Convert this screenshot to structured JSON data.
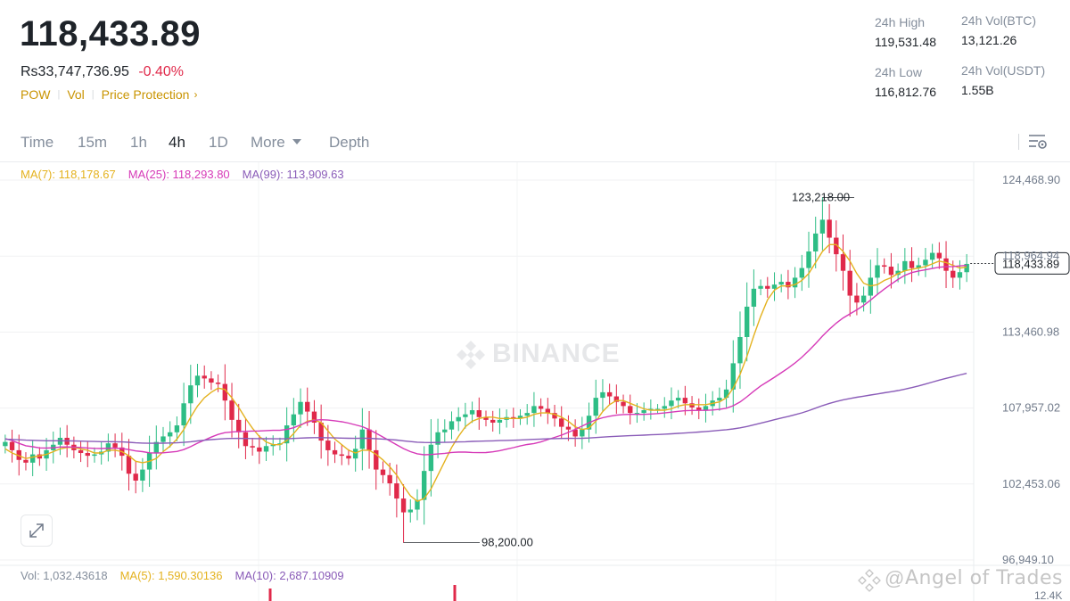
{
  "header": {
    "last_price": "118,433.89",
    "fiat_price": "Rs33,747,736.95",
    "change_pct": "-0.40%",
    "tags": [
      "POW",
      "Vol",
      "Price Protection"
    ],
    "stats": [
      {
        "label": "24h High",
        "value": "119,531.48"
      },
      {
        "label": "24h Vol(BTC)",
        "value": "13,121.26"
      },
      {
        "label": "24h Low",
        "value": "116,812.76"
      },
      {
        "label": "24h Vol(USDT)",
        "value": "1.55B"
      }
    ]
  },
  "toolbar": {
    "intervals": [
      "Time",
      "15m",
      "1h",
      "4h",
      "1D",
      "More",
      "Depth"
    ],
    "active": "4h"
  },
  "ma_legend": {
    "ma7": "MA(7): 118,178.67",
    "ma25": "MA(25): 118,293.80",
    "ma99": "MA(99): 113,909.63"
  },
  "vol_legend": {
    "vol": "Vol: 1,032.43618",
    "ma5": "MA(5): 1,590.30136",
    "ma10": "MA(10): 2,687.10909"
  },
  "colors": {
    "up": "#2ebd85",
    "down": "#e0294a",
    "ma7": "#e4b21f",
    "ma25": "#d63ab8",
    "ma99": "#8a5cb8",
    "accent": "#c99400"
  },
  "watermark": {
    "brand": "BINANCE",
    "author": "Angel of Trades",
    "author_at": "@"
  },
  "chart_data": {
    "type": "candlestick",
    "y_ticks": [
      "124,468.90",
      "118,964.94",
      "113,460.98",
      "107,957.02",
      "102,453.06",
      "96,949.10"
    ],
    "y_tick_values": [
      124468.9,
      118964.94,
      113460.98,
      107957.02,
      102453.06,
      96949.1
    ],
    "ylim": [
      96949.1,
      124468.9
    ],
    "volume_axis_label": "12.4K",
    "high_annotation": "123,218.00",
    "high_value": 123218.0,
    "low_annotation": "98,200.00",
    "low_value": 98200.0,
    "current_price_label": "118,433.89",
    "current_price": 118433.89,
    "close_series": [
      105500,
      104900,
      104200,
      104000,
      104600,
      104300,
      104900,
      105300,
      105800,
      105300,
      104900,
      104700,
      104500,
      104600,
      104800,
      105400,
      105100,
      104500,
      103200,
      102700,
      103500,
      104700,
      105500,
      105900,
      106200,
      106700,
      108300,
      109600,
      110300,
      110100,
      109800,
      109700,
      108500,
      107100,
      106200,
      105200,
      105100,
      104800,
      105200,
      105300,
      105400,
      106700,
      107500,
      108400,
      107700,
      106900,
      105600,
      104900,
      104600,
      104500,
      104300,
      105000,
      106400,
      104900,
      103500,
      103100,
      102500,
      101400,
      100400,
      100600,
      101300,
      103400,
      105300,
      106200,
      106400,
      107000,
      107300,
      107500,
      107800,
      107300,
      107100,
      106900,
      107100,
      107300,
      107200,
      107400,
      107600,
      108100,
      107900,
      107600,
      107200,
      106600,
      106400,
      105900,
      106400,
      107400,
      108700,
      109100,
      108800,
      108400,
      108100,
      107600,
      107600,
      107800,
      107900,
      107900,
      108100,
      108500,
      108700,
      108300,
      108000,
      107800,
      108100,
      108500,
      108700,
      109300,
      111200,
      113100,
      115300,
      116600,
      116800,
      116600,
      116900,
      117100,
      116700,
      117400,
      118100,
      119300,
      120600,
      121600,
      120300,
      119100,
      117900,
      116100,
      115600,
      116100,
      117400,
      118300,
      118200,
      117600,
      117900,
      118600,
      118100,
      118300,
      118700,
      119200,
      118800,
      117900,
      117400,
      117800,
      118400
    ],
    "ma7_series": [
      105000,
      104700,
      104500,
      104300,
      104400,
      104500,
      104600,
      104800,
      105000,
      105100,
      105100,
      105000,
      104900,
      104700,
      104700,
      104900,
      104900,
      104800,
      104500,
      104100,
      104000,
      104100,
      104300,
      104800,
      105200,
      105700,
      106400,
      107300,
      108100,
      108700,
      109100,
      109400,
      109300,
      108700,
      108000,
      107200,
      106500,
      105900,
      105500,
      105300,
      105300,
      105600,
      106100,
      106700,
      107000,
      107100,
      106900,
      106300,
      105700,
      105300,
      104900,
      104700,
      104900,
      104900,
      104600,
      104200,
      103700,
      103100,
      102300,
      101600,
      101200,
      101400,
      102100,
      103100,
      104100,
      105100,
      105900,
      106600,
      107000,
      107200,
      107300,
      107300,
      107200,
      107200,
      107200,
      107200,
      107300,
      107500,
      107600,
      107600,
      107500,
      107300,
      107000,
      106600,
      106400,
      106500,
      107000,
      107700,
      108200,
      108500,
      108500,
      108300,
      108100,
      107900,
      107800,
      107800,
      107800,
      107900,
      108100,
      108200,
      108200,
      108200,
      108200,
      108300,
      108400,
      108700,
      109400,
      110400,
      111700,
      113200,
      114600,
      115800,
      116500,
      116800,
      116800,
      116900,
      117200,
      117700,
      118500,
      119300,
      119800,
      119800,
      119300,
      118600,
      117700,
      117000,
      116800,
      116900,
      117200,
      117400,
      117700,
      117900,
      118000,
      118100,
      118200,
      118400,
      118600,
      118500,
      118300,
      118100,
      118180
    ]
  }
}
